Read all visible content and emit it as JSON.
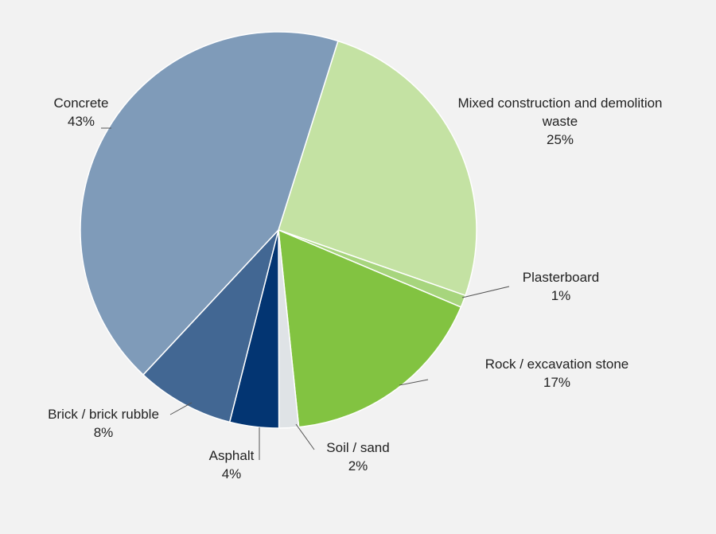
{
  "chart_data": {
    "type": "pie",
    "title": "",
    "slices": [
      {
        "label_lines": [
          "Mixed construction and demolition",
          "waste"
        ],
        "percent_label": "25%",
        "value": 25.5,
        "color": "#c4e2a3"
      },
      {
        "label_lines": [
          "Plasterboard"
        ],
        "percent_label": "1%",
        "value": 1.0,
        "color": "#a7d57d"
      },
      {
        "label_lines": [
          "Rock / excavation stone"
        ],
        "percent_label": "17%",
        "value": 17.0,
        "color": "#82c341"
      },
      {
        "label_lines": [
          "Soil / sand"
        ],
        "percent_label": "2%",
        "value": 1.6,
        "color": "#dfe3e6"
      },
      {
        "label_lines": [
          "Asphalt"
        ],
        "percent_label": "4%",
        "value": 4.0,
        "color": "#033572"
      },
      {
        "label_lines": [
          "Brick / brick rubble"
        ],
        "percent_label": "8%",
        "value": 8.0,
        "color": "#426793"
      },
      {
        "label_lines": [
          "Concrete"
        ],
        "percent_label": "43%",
        "value": 42.9,
        "color": "#7f9bb9"
      }
    ]
  }
}
